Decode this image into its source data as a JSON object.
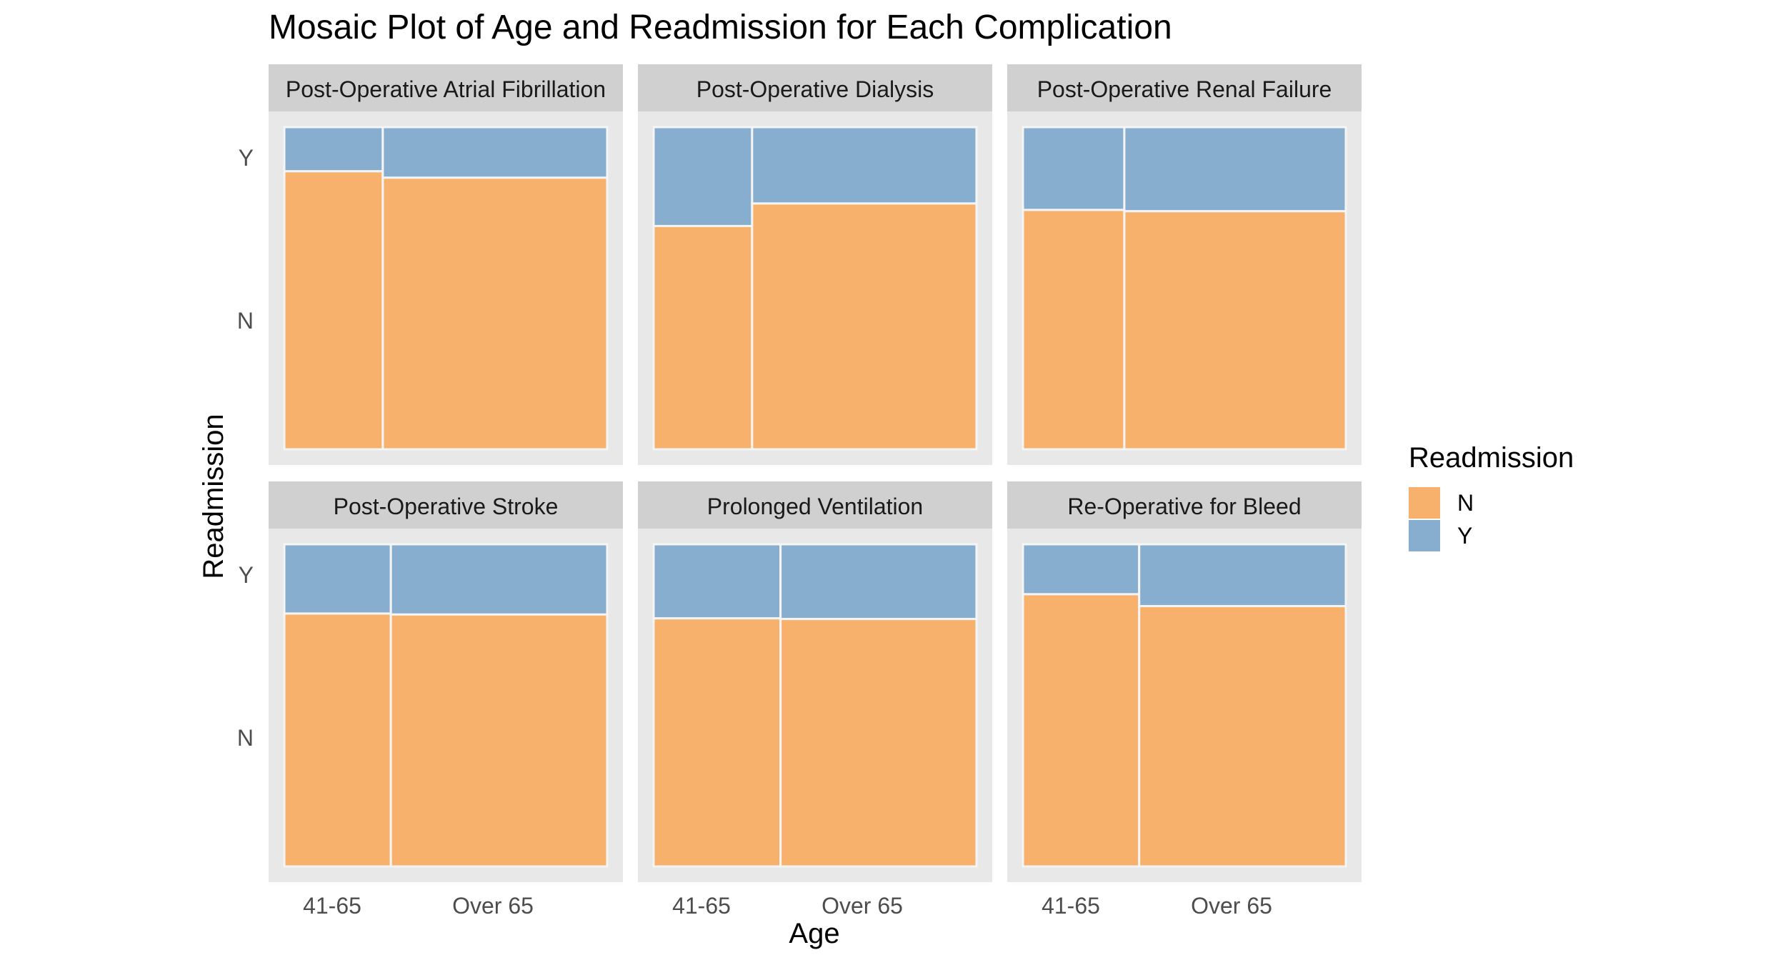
{
  "chart_data": {
    "type": "mosaic",
    "title": "Mosaic Plot of Age and Readmission for Each Complication",
    "xlabel": "Age",
    "ylabel": "Readmission",
    "x_categories": [
      "41-65",
      "Over 65"
    ],
    "y_categories": [
      "N",
      "Y"
    ],
    "legend": {
      "title": "Readmission",
      "position": "right",
      "entries": [
        {
          "label": "N",
          "color": "#F8B16C"
        },
        {
          "label": "Y",
          "color": "#87AECF"
        }
      ]
    },
    "colors": {
      "N": "#F8B16C",
      "Y": "#87AECF",
      "panel_bg": "#E8E8E8",
      "strip_bg": "#D0D0D0",
      "divider": "#F5F5F5"
    },
    "panels": [
      {
        "name": "Post-Operative Atrial Fibrillation",
        "age_shares": [
          0.305,
          0.695
        ],
        "readmit_Y_share": [
          0.137,
          0.157
        ]
      },
      {
        "name": "Post-Operative Dialysis",
        "age_shares": [
          0.305,
          0.695
        ],
        "readmit_Y_share": [
          0.307,
          0.237
        ]
      },
      {
        "name": "Post-Operative Renal Failure",
        "age_shares": [
          0.314,
          0.686
        ],
        "readmit_Y_share": [
          0.257,
          0.261
        ]
      },
      {
        "name": "Post-Operative Stroke",
        "age_shares": [
          0.33,
          0.67
        ],
        "readmit_Y_share": [
          0.215,
          0.218
        ]
      },
      {
        "name": "Prolonged Ventilation",
        "age_shares": [
          0.393,
          0.607
        ],
        "readmit_Y_share": [
          0.23,
          0.232
        ]
      },
      {
        "name": "Re-Operative for Bleed",
        "age_shares": [
          0.36,
          0.64
        ],
        "readmit_Y_share": [
          0.155,
          0.192
        ]
      }
    ]
  }
}
